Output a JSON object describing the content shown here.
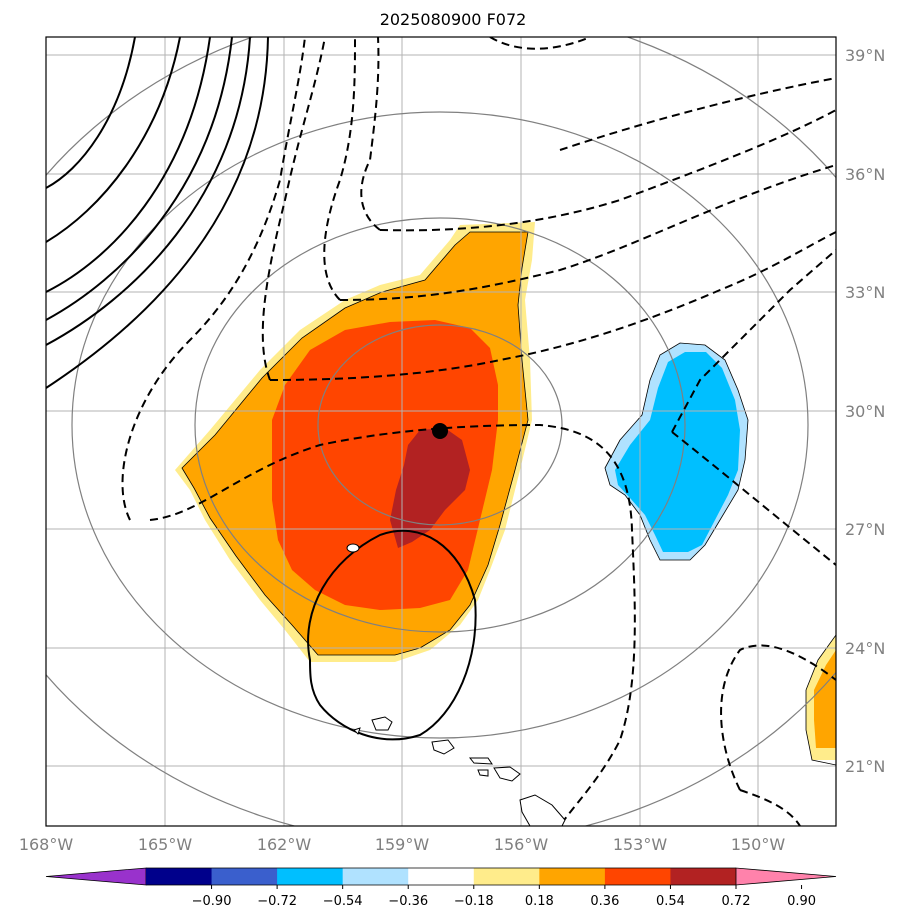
{
  "title": "2025080900 F072",
  "map": {
    "lon_labels": [
      "168°W",
      "165°W",
      "162°W",
      "159°W",
      "156°W",
      "153°W",
      "150°W"
    ],
    "lon_values": [
      -168,
      -165,
      -162,
      -159,
      -156,
      -153,
      -150
    ],
    "lat_labels": [
      "39°N",
      "36°N",
      "33°N",
      "30°N",
      "27°N",
      "24°N",
      "21°N"
    ],
    "lat_values": [
      39,
      36,
      33,
      30,
      27,
      24,
      21
    ],
    "center_marker": {
      "lon": -158.0,
      "lat": 29.5
    },
    "range_rings": "concentric circles around storm center",
    "coastline": "Hawaiian Islands"
  },
  "colorbar": {
    "tick_labels": [
      "−0.90",
      "−0.72",
      "−0.54",
      "−0.36",
      "−0.18",
      "0.18",
      "0.36",
      "0.54",
      "0.72",
      "0.90"
    ],
    "colors": [
      "#9932cc",
      "#00008b",
      "#3a5fcd",
      "#00bfff",
      "#b0e2ff",
      "#ffffff",
      "#ffec8b",
      "#ffa500",
      "#ff4500",
      "#b22222",
      "#ff82ab"
    ],
    "extend": "both"
  },
  "colors": {
    "grid": "#b3b3b3",
    "rings": "#808080",
    "contour": "#000000"
  }
}
